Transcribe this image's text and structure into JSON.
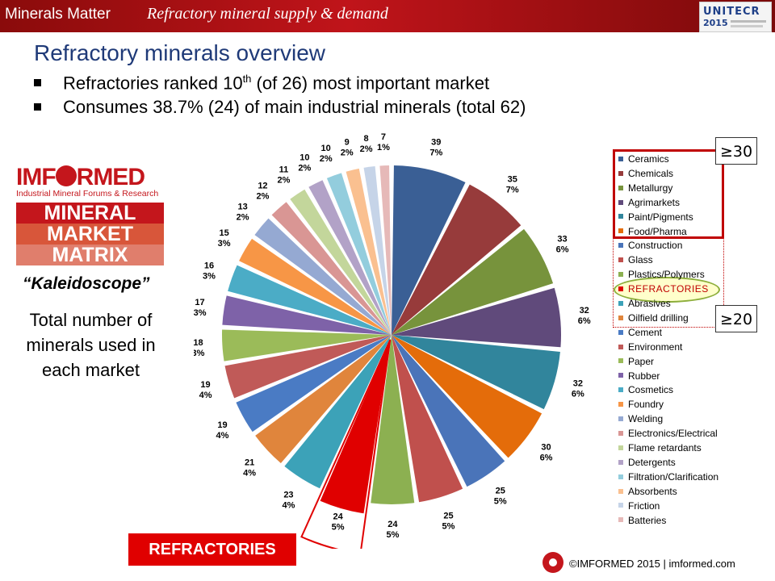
{
  "header": {
    "title": "Minerals Matter",
    "subtitle": "Refractory mineral supply & demand",
    "logo_text": "UNITECR",
    "logo_year": "2015"
  },
  "slide": {
    "title": "Refractory minerals overview",
    "bullets": [
      {
        "pre": "Refractories ranked 10",
        "sup": "th",
        "post": " (of 26) most important market"
      },
      {
        "pre": "Consumes 38.7% (24) of main industrial minerals (total 62)",
        "sup": "",
        "post": ""
      }
    ]
  },
  "left_panel": {
    "brand_pre": "IMF",
    "brand_post": "RMED",
    "brand_sub": "Industrial Mineral Forums & Research",
    "matrix": [
      "MINERAL",
      "MARKET",
      "MATRIX"
    ],
    "kaleidoscope": "“Kaleidoscope”",
    "total_caption": "Total number of minerals used in each market"
  },
  "callouts": {
    "ge30": "≥30",
    "ge20": "≥20"
  },
  "refractories_badge": "REFRACTORIES",
  "footer": "©IMFORMED 2015  | imformed.com",
  "chart_data": {
    "type": "pie",
    "title": "",
    "categories": [
      "Ceramics",
      "Chemicals",
      "Metallurgy",
      "Agrimarkets",
      "Paint/Pigments",
      "Food/Pharma",
      "Construction",
      "Glass",
      "Plastics/Polymers",
      "REFRACTORIES",
      "Abrasives",
      "Oilfield drilling",
      "Cement",
      "Environment",
      "Paper",
      "Rubber",
      "Cosmetics",
      "Foundry",
      "Welding",
      "Electronics/Electrical",
      "Flame retardants",
      "Detergents",
      "Filtration/Clarification",
      "Absorbents",
      "Friction",
      "Batteries"
    ],
    "values": [
      39,
      35,
      33,
      32,
      32,
      30,
      25,
      25,
      24,
      24,
      23,
      21,
      19,
      19,
      18,
      17,
      16,
      15,
      13,
      12,
      11,
      10,
      10,
      9,
      8,
      7
    ],
    "percent_labels": [
      "7%",
      "7%",
      "6%",
      "6%",
      "6%",
      "6%",
      "5%",
      "5%",
      "5%",
      "5%",
      "4%",
      "4%",
      "4%",
      "4%",
      "3%",
      "3%",
      "3%",
      "3%",
      "2%",
      "2%",
      "2%",
      "2%",
      "2%",
      "2%",
      "2%",
      "1%"
    ],
    "colors": [
      "#3a5f95",
      "#973b3b",
      "#77933c",
      "#604a7b",
      "#31859c",
      "#e46c0a",
      "#4a74b9",
      "#c0504d",
      "#8cb051",
      "#e00000",
      "#3ca2b8",
      "#e0853c",
      "#4a7bc4",
      "#c05a58",
      "#9bbb59",
      "#7e62a8",
      "#4bacc6",
      "#f79646",
      "#95a9d2",
      "#d99694",
      "#c3d69b",
      "#b2a2c7",
      "#93cddd",
      "#fac090",
      "#c6d4e8",
      "#e6b9b8"
    ],
    "legend_position": "right",
    "highlight": "REFRACTORIES"
  }
}
